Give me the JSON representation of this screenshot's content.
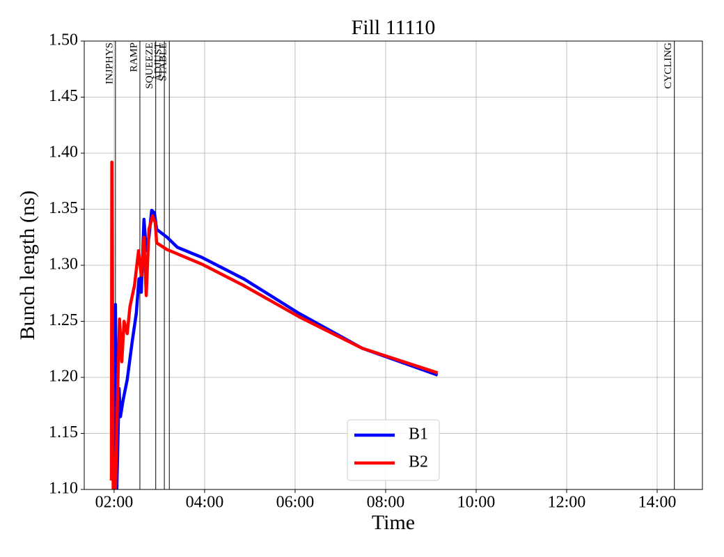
{
  "chart_data": {
    "type": "line",
    "title": "Fill 11110",
    "xlabel": "Time",
    "ylabel": "Bunch length (ns)",
    "xlim": [
      1.34,
      15.0
    ],
    "ylim": [
      1.1,
      1.5
    ],
    "xticks": [
      {
        "value": 2,
        "label": "02:00"
      },
      {
        "value": 4,
        "label": "04:00"
      },
      {
        "value": 6,
        "label": "06:00"
      },
      {
        "value": 8,
        "label": "08:00"
      },
      {
        "value": 10,
        "label": "10:00"
      },
      {
        "value": 12,
        "label": "12:00"
      },
      {
        "value": 14,
        "label": "14:00"
      }
    ],
    "yticks": [
      {
        "value": 1.1,
        "label": "1.10"
      },
      {
        "value": 1.15,
        "label": "1.15"
      },
      {
        "value": 1.2,
        "label": "1.20"
      },
      {
        "value": 1.25,
        "label": "1.25"
      },
      {
        "value": 1.3,
        "label": "1.30"
      },
      {
        "value": 1.35,
        "label": "1.35"
      },
      {
        "value": 1.4,
        "label": "1.40"
      },
      {
        "value": 1.45,
        "label": "1.45"
      },
      {
        "value": 1.5,
        "label": "1.50"
      }
    ],
    "grid": true,
    "legend": "lower center",
    "phases": [
      {
        "name": "INJPHYS",
        "x": 2.03
      },
      {
        "name": "RAMP",
        "x": 2.57
      },
      {
        "name": "SQUEEZE",
        "x": 2.92
      },
      {
        "name": "ADJUST",
        "x": 3.11
      },
      {
        "name": "STABLE",
        "x": 3.22
      },
      {
        "name": "CYCLING",
        "x": 14.38
      }
    ],
    "series": [
      {
        "name": "B1",
        "color": "#0000ff",
        "x": [
          1.94,
          1.98,
          2.03,
          2.06,
          2.11,
          2.14,
          2.2,
          2.29,
          2.4,
          2.49,
          2.55,
          2.6,
          2.66,
          2.71,
          2.77,
          2.83,
          2.89,
          2.94,
          3.17,
          3.4,
          3.94,
          4.86,
          6.09,
          7.48,
          9.15
        ],
        "values": [
          1.108,
          1.114,
          1.265,
          1.1,
          1.19,
          1.165,
          1.18,
          1.198,
          1.232,
          1.257,
          1.288,
          1.276,
          1.341,
          1.313,
          1.325,
          1.349,
          1.347,
          1.332,
          1.325,
          1.316,
          1.307,
          1.288,
          1.257,
          1.226,
          1.202
        ]
      },
      {
        "name": "B2",
        "color": "#ff0000",
        "x": [
          1.94,
          1.95,
          1.98,
          2.03,
          2.08,
          2.12,
          2.17,
          2.22,
          2.29,
          2.35,
          2.45,
          2.54,
          2.6,
          2.66,
          2.71,
          2.77,
          2.85,
          2.91,
          2.94,
          3.17,
          3.94,
          4.86,
          6.09,
          7.48,
          9.15
        ],
        "values": [
          1.108,
          1.392,
          1.1,
          1.1,
          1.189,
          1.252,
          1.214,
          1.25,
          1.239,
          1.263,
          1.282,
          1.313,
          1.291,
          1.325,
          1.273,
          1.332,
          1.344,
          1.338,
          1.32,
          1.314,
          1.301,
          1.282,
          1.254,
          1.226,
          1.204
        ]
      }
    ]
  }
}
